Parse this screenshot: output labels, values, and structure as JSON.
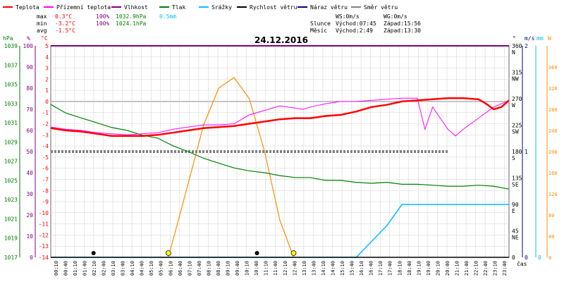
{
  "legend": [
    {
      "label": "Teplota",
      "color": "#ff0000"
    },
    {
      "label": "Přízemní teplota",
      "color": "#ff00ff"
    },
    {
      "label": "Vlhkost",
      "color": "#800080"
    },
    {
      "label": "Tlak",
      "color": "#008000"
    },
    {
      "label": "Srážky",
      "color": "#00bfff"
    },
    {
      "label": "Rychlost větru",
      "color": "#000000"
    },
    {
      "label": "Náraz větru",
      "color": "#000080"
    },
    {
      "label": "Směr větru",
      "color": "#808080"
    }
  ],
  "stats": {
    "max_label": "max",
    "max_temp": "0.3°C",
    "max_hum": "100%",
    "max_press": "1032.9hPa",
    "max_rain": "0.5mm",
    "min_label": "min",
    "min_temp": "-3.2°C",
    "min_hum": "100%",
    "min_press": "1024.1hPa",
    "avg_label": "avg",
    "avg_temp": "-1.5°C",
    "ws": "WS:0m/s",
    "wg": "WG:0m/s",
    "sun_label": "Slunce",
    "sun_rise": "Východ:07:45",
    "sun_set": "Západ:15:56",
    "moon_label": "Měsíc",
    "moon_rise": "Východ:2:49",
    "moon_set": "Západ:13:30"
  },
  "axis_units": {
    "hpa": "hPa",
    "pct": "%",
    "degc": "°C",
    "deg": "°",
    "ms": "m/s",
    "mm": "mm",
    "w": "W"
  },
  "time_label": "čas",
  "chart_data": {
    "type": "line",
    "title": "24.12.2016",
    "x_ticks": [
      "00:10",
      "00:40",
      "01:10",
      "01:40",
      "02:10",
      "02:40",
      "03:10",
      "03:40",
      "04:10",
      "04:40",
      "05:10",
      "05:40",
      "06:10",
      "06:40",
      "07:10",
      "07:40",
      "08:10",
      "08:40",
      "09:10",
      "09:40",
      "10:10",
      "10:40",
      "11:10",
      "11:40",
      "12:10",
      "12:40",
      "13:10",
      "13:40",
      "14:10",
      "14:40",
      "15:10",
      "15:40",
      "16:10",
      "16:40",
      "17:10",
      "17:40",
      "18:10",
      "18:40",
      "19:10",
      "19:40",
      "20:10",
      "20:40",
      "21:10",
      "21:40",
      "22:10",
      "22:40",
      "23:10",
      "23:40"
    ],
    "axes": {
      "pressure_hpa": {
        "min": 1017,
        "max": 1039,
        "ticks": [
          1017,
          1019,
          1021,
          1023,
          1025,
          1027,
          1029,
          1031,
          1033,
          1035,
          1037,
          1039
        ]
      },
      "humidity_pct": {
        "min": 0,
        "max": 100,
        "ticks": [
          0,
          10,
          20,
          30,
          40,
          50,
          60,
          70,
          80,
          90,
          100
        ]
      },
      "temperature_c": {
        "min": -14,
        "max": 5,
        "ticks": [
          5,
          4,
          3,
          2,
          1,
          0,
          -1,
          -2,
          -3,
          -4,
          -5,
          -6,
          -7,
          -8,
          -9,
          -10,
          -11,
          -12,
          -13,
          -14
        ]
      },
      "wind_dir_deg": {
        "ticks": [
          {
            "v": 360,
            "l": "N"
          },
          {
            "v": 315,
            "l": "NW"
          },
          {
            "v": 270,
            "l": "W"
          },
          {
            "v": 225,
            "l": "SW"
          },
          {
            "v": 180,
            "l": "S"
          },
          {
            "v": 135,
            "l": "SE"
          },
          {
            "v": 90,
            "l": "E"
          },
          {
            "v": 45,
            "l": "NE"
          },
          {
            "v": 0,
            "l": ""
          }
        ]
      },
      "wind_ms": {
        "ticks": [
          {
            "v": 2,
            "l": "2"
          },
          {
            "v": 1,
            "l": "1"
          },
          {
            "v": 0,
            "l": "0"
          }
        ]
      },
      "rain_mm": {
        "ticks": [
          {
            "v": 0,
            "l": "0"
          }
        ]
      },
      "solar_w": {
        "ticks": [
          0,
          40,
          80,
          120,
          160,
          200,
          240,
          280,
          320,
          360
        ]
      }
    },
    "series": [
      {
        "name": "Teplota",
        "unit": "°C",
        "points": [
          [
            0,
            -2.4
          ],
          [
            1,
            -2.6
          ],
          [
            2,
            -2.7
          ],
          [
            3,
            -2.9
          ],
          [
            4,
            -3.1
          ],
          [
            5,
            -3.1
          ],
          [
            6,
            -3.1
          ],
          [
            7,
            -3.0
          ],
          [
            8,
            -2.8
          ],
          [
            9,
            -2.6
          ],
          [
            10,
            -2.4
          ],
          [
            11,
            -2.3
          ],
          [
            12,
            -2.2
          ],
          [
            13,
            -2.0
          ],
          [
            14,
            -1.8
          ],
          [
            15,
            -1.6
          ],
          [
            16,
            -1.5
          ],
          [
            17,
            -1.5
          ],
          [
            18,
            -1.3
          ],
          [
            19,
            -1.2
          ],
          [
            20,
            -0.9
          ],
          [
            21,
            -0.5
          ],
          [
            22,
            -0.3
          ],
          [
            23,
            0.0
          ],
          [
            24,
            0.1
          ],
          [
            25,
            0.2
          ],
          [
            26,
            0.3
          ],
          [
            27,
            0.3
          ],
          [
            28,
            0.2
          ],
          [
            28.5,
            -0.2
          ],
          [
            29,
            -0.7
          ],
          [
            29.5,
            -0.5
          ],
          [
            30,
            0.1
          ]
        ]
      },
      {
        "name": "Přízemní teplota",
        "unit": "°C",
        "points": [
          [
            0,
            -2.3
          ],
          [
            1,
            -2.5
          ],
          [
            2,
            -2.6
          ],
          [
            3,
            -2.8
          ],
          [
            4,
            -2.9
          ],
          [
            5,
            -3.0
          ],
          [
            6,
            -2.9
          ],
          [
            7,
            -2.8
          ],
          [
            8,
            -2.5
          ],
          [
            9,
            -2.3
          ],
          [
            10,
            -2.1
          ],
          [
            11,
            -2.1
          ],
          [
            12,
            -2.0
          ],
          [
            13,
            -1.2
          ],
          [
            14,
            -0.8
          ],
          [
            15,
            -0.4
          ],
          [
            16,
            -0.6
          ],
          [
            16.5,
            -0.7
          ],
          [
            17,
            -0.5
          ],
          [
            18,
            -0.2
          ],
          [
            19,
            0.0
          ],
          [
            20,
            0.0
          ],
          [
            21,
            0.1
          ],
          [
            22,
            0.2
          ],
          [
            23,
            0.3
          ],
          [
            24,
            0.3
          ],
          [
            24.5,
            -2.5
          ],
          [
            25,
            -0.5
          ],
          [
            25.5,
            -1.5
          ],
          [
            26,
            -2.5
          ],
          [
            26.5,
            -3.1
          ],
          [
            27,
            -2.5
          ],
          [
            28,
            -1.5
          ],
          [
            29,
            -0.5
          ],
          [
            30,
            0.1
          ]
        ]
      },
      {
        "name": "Vlhkost",
        "unit": "%",
        "points": [
          [
            0,
            100
          ],
          [
            30,
            100
          ]
        ]
      },
      {
        "name": "Tlak",
        "unit": "hPa",
        "points": [
          [
            0,
            1032.9
          ],
          [
            1,
            1032.0
          ],
          [
            2,
            1031.5
          ],
          [
            3,
            1031.0
          ],
          [
            4,
            1030.5
          ],
          [
            5,
            1030.2
          ],
          [
            6,
            1029.7
          ],
          [
            7,
            1029.4
          ],
          [
            8,
            1028.6
          ],
          [
            9,
            1028.0
          ],
          [
            10,
            1027.3
          ],
          [
            11,
            1026.8
          ],
          [
            12,
            1026.3
          ],
          [
            13,
            1026.0
          ],
          [
            14,
            1025.8
          ],
          [
            15,
            1025.5
          ],
          [
            16,
            1025.3
          ],
          [
            17,
            1025.3
          ],
          [
            18,
            1025.0
          ],
          [
            19,
            1025.0
          ],
          [
            20,
            1024.8
          ],
          [
            21,
            1024.7
          ],
          [
            22,
            1024.8
          ],
          [
            23,
            1024.6
          ],
          [
            24,
            1024.6
          ],
          [
            25,
            1024.5
          ],
          [
            26,
            1024.4
          ],
          [
            27,
            1024.4
          ],
          [
            28,
            1024.5
          ],
          [
            29,
            1024.4
          ],
          [
            30,
            1024.1
          ]
        ]
      },
      {
        "name": "Srážky",
        "unit": "mm",
        "points": [
          [
            0,
            0
          ],
          [
            20,
            0
          ],
          [
            21,
            0.15
          ],
          [
            22,
            0.3
          ],
          [
            23,
            0.5
          ],
          [
            30,
            0.5
          ]
        ]
      },
      {
        "name": "Rychlost větru",
        "unit": "m/s",
        "points": [
          [
            0,
            0
          ],
          [
            30,
            0
          ]
        ]
      },
      {
        "name": "Náraz větru",
        "unit": "m/s",
        "points": [
          [
            0,
            0
          ],
          [
            30,
            0
          ]
        ]
      },
      {
        "name": "Směr větru",
        "unit": "°",
        "points": [
          [
            0,
            180
          ],
          [
            26,
            180
          ]
        ]
      },
      {
        "name": "Solar",
        "unit": "W",
        "points": [
          [
            7.7,
            0
          ],
          [
            9,
            140
          ],
          [
            10,
            250
          ],
          [
            11,
            320
          ],
          [
            12,
            340
          ],
          [
            13,
            300
          ],
          [
            14,
            200
          ],
          [
            15,
            70
          ],
          [
            15.9,
            0
          ]
        ]
      }
    ]
  },
  "colors": {
    "temp": "#ff0000",
    "ground": "#ff00ff",
    "humidity": "#800080",
    "pressure": "#008000",
    "rain": "#00bfff",
    "wind": "#000000",
    "gust": "#000080",
    "dir": "#808080",
    "solar": "#ff8c00",
    "grid": "#d0d0d0",
    "axis_hpa": "#008000",
    "axis_pct": "#800080",
    "axis_c": "#ff0000"
  }
}
